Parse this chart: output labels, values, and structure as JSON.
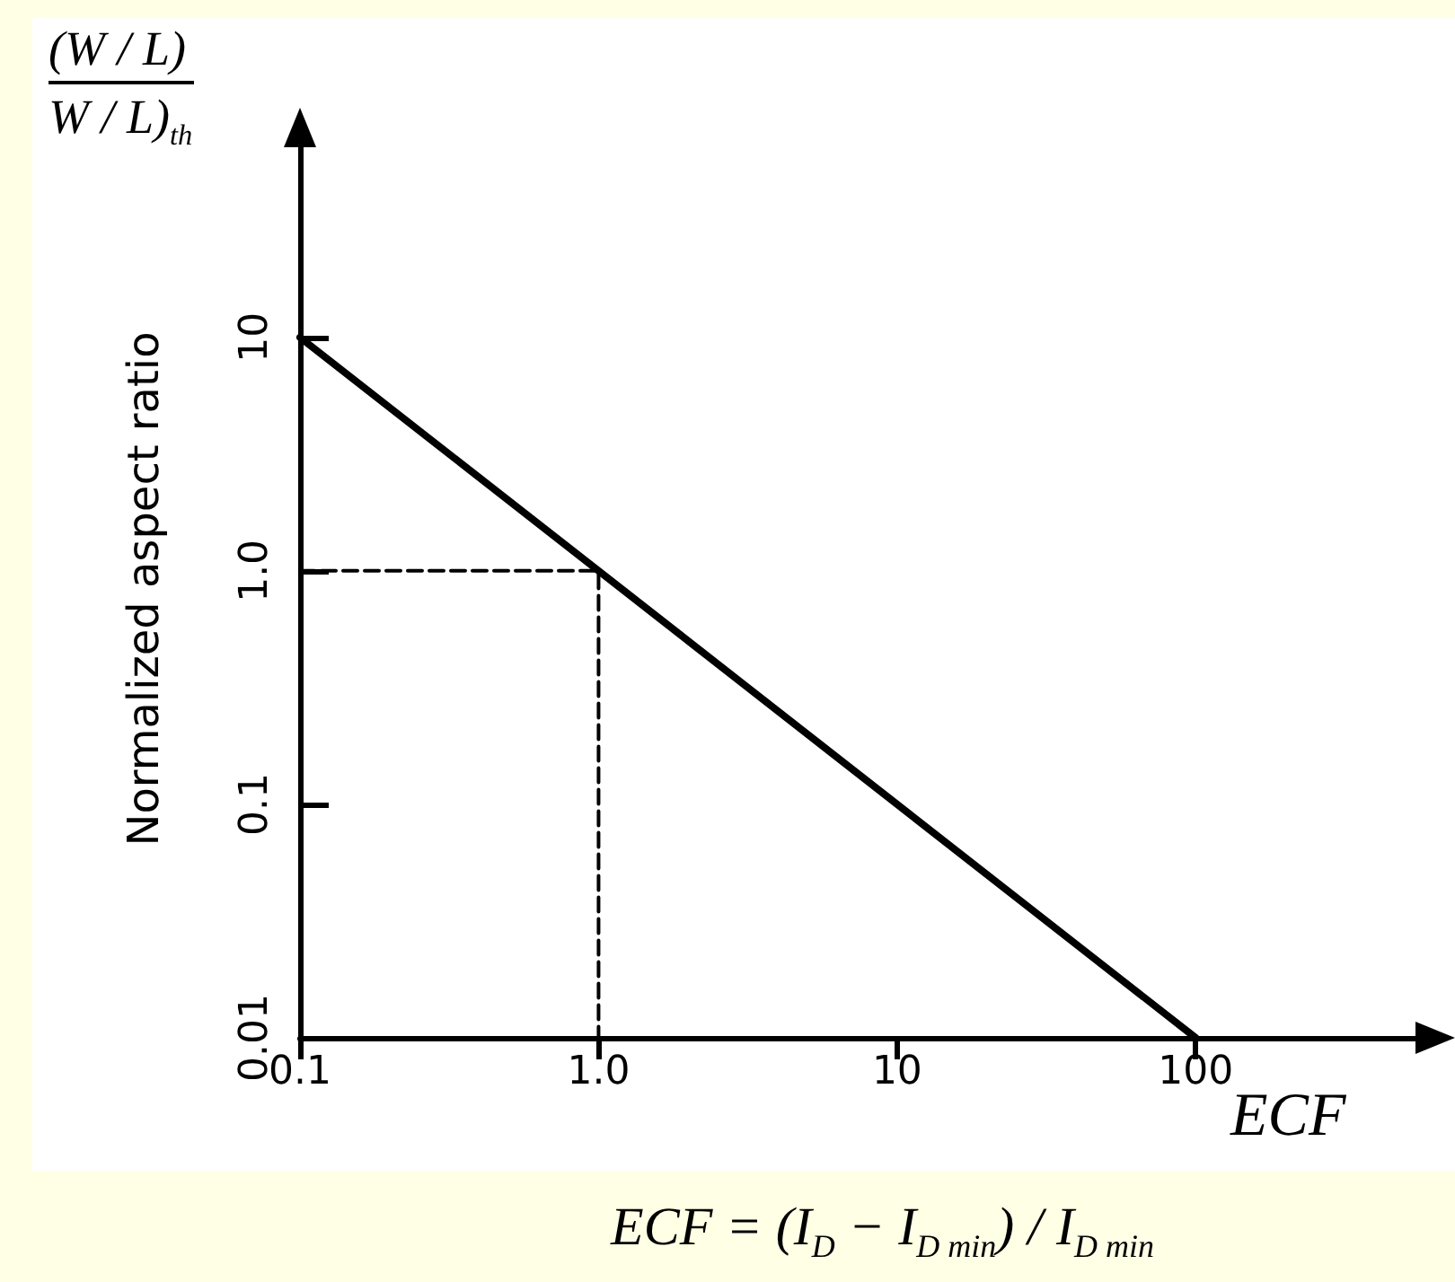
{
  "chart_data": {
    "type": "line",
    "xlabel": "ECF",
    "ylabel": "Normalized aspect ratio",
    "annotations": [
      "(W / L)",
      "W / L)$_{th}$",
      "ECF = (I$_{D}$ − I$_{D min}$) / I$_{D min}$"
    ],
    "series": [
      {
        "x": [
          0.1,
          100
        ],
        "values": [
          10,
          0.01
        ],
        "color": "#000000",
        "line_style": "solid"
      },
      {
        "x": [
          0.1,
          1,
          1
        ],
        "values": [
          1,
          1,
          0.01
        ],
        "color": "#000000",
        "line_style": "dashed"
      }
    ],
    "log": "xy",
    "xlim": [
      0.1,
      600
    ],
    "xticks": [
      0.1,
      {
        "value": 1,
        "label": "1.0"
      },
      10,
      100
    ],
    "ylim": [
      0.01,
      70
    ],
    "yticks": [
      0.01,
      0.1,
      {
        "value": 1,
        "label": "1.0"
      },
      10
    ],
    "grid": false,
    "marker": "none"
  }
}
